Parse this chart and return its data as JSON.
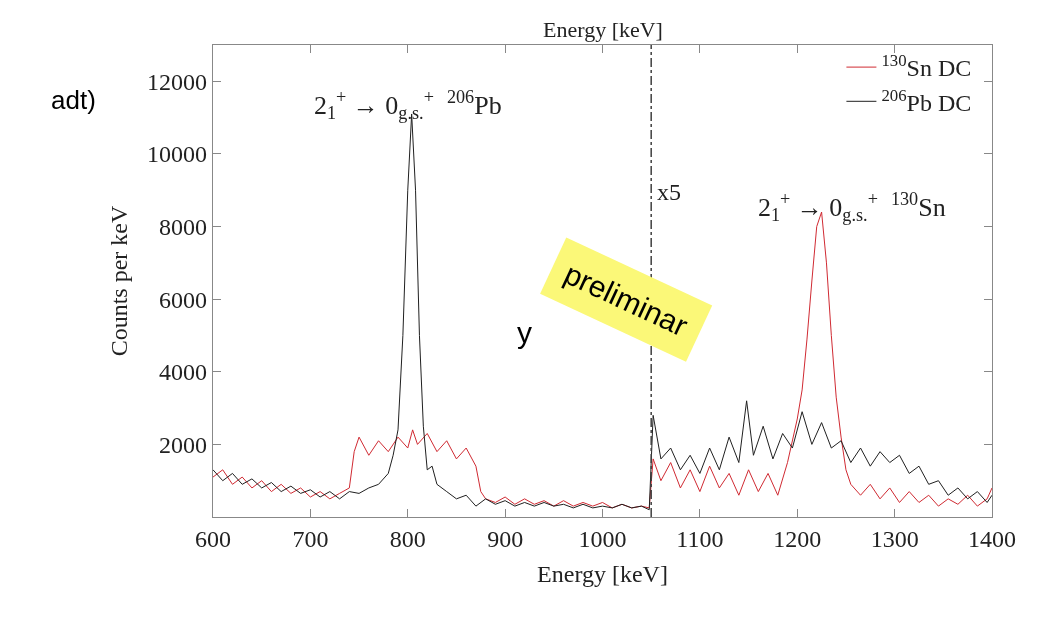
{
  "chart_data": {
    "type": "line",
    "xlabel": "Energy [keV]",
    "x2label": "Energy [keV]",
    "ylabel": "Counts per keV",
    "xlim": [
      600,
      1400
    ],
    "xticks": [
      600,
      700,
      800,
      900,
      1000,
      1100,
      1200,
      1300,
      1400
    ],
    "ylim": [
      0,
      13000
    ],
    "yticks": [
      2000,
      4000,
      6000,
      8000,
      10000,
      12000
    ],
    "grid": false,
    "legend": "top right",
    "marker": "none",
    "line_style": "solid",
    "ref_lines": [
      {
        "axis": "x",
        "value": 1050,
        "label": "x5",
        "color": "#404040",
        "line_style": "dashed"
      }
    ],
    "annotations": [
      "2$_{1}$$^{+}$ → 0$_{g.s.}$$^{+}$  $^{206}$Pb",
      "2$_{1}$$^{+}$ → 0$_{g.s.}$$^{+}$  $^{130}$Sn",
      "adt)",
      "preliminar",
      "y"
    ],
    "series": [
      {
        "name": "$^{130}$Sn DC",
        "color": "#d02a32",
        "x": [
          600,
          610,
          620,
          630,
          640,
          650,
          660,
          670,
          680,
          690,
          700,
          710,
          720,
          730,
          740,
          745,
          750,
          760,
          770,
          780,
          790,
          800,
          805,
          810,
          820,
          830,
          840,
          850,
          860,
          870,
          875,
          880,
          890,
          900,
          910,
          920,
          930,
          940,
          950,
          960,
          970,
          980,
          990,
          1000,
          1010,
          1020,
          1030,
          1040,
          1048,
          1052,
          1060,
          1070,
          1080,
          1090,
          1100,
          1110,
          1120,
          1130,
          1140,
          1150,
          1160,
          1170,
          1180,
          1190,
          1200,
          1205,
          1210,
          1215,
          1220,
          1225,
          1230,
          1235,
          1240,
          1245,
          1250,
          1255,
          1265,
          1275,
          1285,
          1295,
          1305,
          1315,
          1325,
          1335,
          1345,
          1355,
          1365,
          1375,
          1385,
          1395,
          1400
        ],
        "values": [
          1100,
          1300,
          900,
          1100,
          800,
          1000,
          700,
          900,
          650,
          800,
          550,
          700,
          500,
          650,
          800,
          1800,
          2200,
          1700,
          2100,
          1800,
          2200,
          1900,
          2400,
          2000,
          2300,
          1800,
          2100,
          1600,
          1900,
          1400,
          700,
          500,
          400,
          550,
          350,
          500,
          350,
          450,
          300,
          450,
          300,
          400,
          300,
          400,
          250,
          350,
          250,
          300,
          250,
          1600,
          1000,
          1500,
          800,
          1300,
          700,
          1400,
          800,
          1200,
          600,
          1300,
          700,
          1200,
          600,
          1500,
          2700,
          3500,
          4900,
          6500,
          8000,
          8400,
          7000,
          5000,
          3300,
          2200,
          1300,
          900,
          600,
          900,
          500,
          800,
          400,
          700,
          400,
          600,
          300,
          500,
          350,
          600,
          300,
          500,
          800
        ]
      },
      {
        "name": "$^{206}$Pb DC",
        "color": "#202020",
        "x": [
          600,
          610,
          620,
          630,
          640,
          650,
          660,
          670,
          680,
          690,
          700,
          710,
          720,
          730,
          740,
          750,
          760,
          770,
          780,
          785,
          790,
          795,
          800,
          804,
          808,
          812,
          816,
          820,
          825,
          830,
          840,
          850,
          860,
          870,
          880,
          890,
          900,
          910,
          920,
          930,
          940,
          950,
          960,
          970,
          980,
          990,
          1000,
          1010,
          1020,
          1030,
          1040,
          1048,
          1052,
          1060,
          1070,
          1080,
          1090,
          1100,
          1110,
          1120,
          1130,
          1140,
          1148,
          1155,
          1165,
          1175,
          1185,
          1195,
          1205,
          1215,
          1225,
          1235,
          1245,
          1255,
          1265,
          1275,
          1285,
          1295,
          1305,
          1315,
          1325,
          1335,
          1345,
          1355,
          1365,
          1375,
          1385,
          1395,
          1400
        ],
        "values": [
          1300,
          1000,
          1200,
          900,
          1050,
          800,
          950,
          700,
          850,
          650,
          750,
          550,
          700,
          500,
          700,
          650,
          800,
          900,
          1200,
          1700,
          2400,
          5000,
          9000,
          11100,
          9000,
          5000,
          2500,
          1300,
          1400,
          900,
          700,
          500,
          600,
          300,
          500,
          350,
          450,
          300,
          400,
          300,
          400,
          300,
          350,
          250,
          350,
          250,
          300,
          250,
          350,
          250,
          300,
          200,
          2800,
          1600,
          1900,
          1300,
          1700,
          1200,
          1900,
          1300,
          2200,
          1500,
          3200,
          1700,
          2500,
          1600,
          2300,
          1900,
          2900,
          2000,
          2600,
          1900,
          2100,
          1500,
          1900,
          1400,
          1800,
          1500,
          1700,
          1200,
          1400,
          900,
          1000,
          600,
          800,
          500,
          700,
          400,
          600
        ]
      }
    ]
  }
}
